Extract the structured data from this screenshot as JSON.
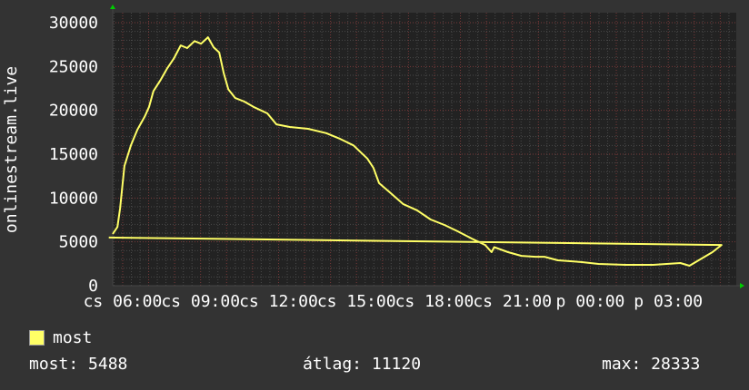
{
  "chart_data": {
    "type": "line",
    "ylabel": "onlinestream.live",
    "ylim": [
      0,
      31000
    ],
    "yticks": [
      "0",
      "5000",
      "10000",
      "15000",
      "20000",
      "25000",
      "30000"
    ],
    "xticks": [
      "cs 06:00",
      "cs 09:00",
      "cs 12:00",
      "cs 15:00",
      "cs 18:00",
      "cs 21:00",
      "p 00:00",
      "p 03:00"
    ],
    "grid": true,
    "legend_position": "bottom-left",
    "series": [
      {
        "name": "most",
        "color": "#ffff66",
        "points": [
          [
            "05:37",
            5900
          ],
          [
            "05:48",
            6700
          ],
          [
            "05:54",
            8800
          ],
          [
            "06:04",
            13650
          ],
          [
            "06:19",
            16000
          ],
          [
            "06:34",
            17800
          ],
          [
            "06:51",
            19300
          ],
          [
            "07:01",
            20400
          ],
          [
            "07:11",
            22200
          ],
          [
            "07:28",
            23500
          ],
          [
            "07:43",
            24800
          ],
          [
            "07:58",
            25900
          ],
          [
            "08:14",
            27400
          ],
          [
            "08:29",
            27100
          ],
          [
            "08:46",
            27900
          ],
          [
            "09:01",
            27600
          ],
          [
            "09:17",
            28333
          ],
          [
            "09:30",
            27200
          ],
          [
            "09:43",
            26600
          ],
          [
            "09:53",
            24300
          ],
          [
            "10:04",
            22400
          ],
          [
            "10:20",
            21400
          ],
          [
            "10:41",
            21000
          ],
          [
            "11:02",
            20400
          ],
          [
            "11:34",
            19650
          ],
          [
            "11:55",
            18400
          ],
          [
            "12:26",
            18100
          ],
          [
            "13:08",
            17900
          ],
          [
            "13:50",
            17400
          ],
          [
            "14:22",
            16750
          ],
          [
            "14:53",
            16000
          ],
          [
            "15:25",
            14500
          ],
          [
            "15:39",
            13450
          ],
          [
            "15:52",
            11700
          ],
          [
            "16:17",
            10650
          ],
          [
            "16:48",
            9300
          ],
          [
            "17:20",
            8600
          ],
          [
            "17:51",
            7550
          ],
          [
            "18:23",
            6930
          ],
          [
            "18:54",
            6200
          ],
          [
            "19:26",
            5380
          ],
          [
            "19:57",
            4650
          ],
          [
            "20:12",
            3830
          ],
          [
            "20:18",
            4400
          ],
          [
            "20:50",
            3830
          ],
          [
            "21:21",
            3400
          ],
          [
            "21:53",
            3300
          ],
          [
            "22:14",
            3300
          ],
          [
            "22:45",
            2900
          ],
          [
            "23:38",
            2700
          ],
          [
            "00:19",
            2480
          ],
          [
            "01:22",
            2380
          ],
          [
            "02:25",
            2380
          ],
          [
            "03:28",
            2590
          ],
          [
            "03:49",
            2280
          ],
          [
            "04:10",
            2900
          ],
          [
            "04:42",
            3830
          ],
          [
            "05:03",
            4650
          ],
          [
            "05:28",
            5488
          ]
        ]
      }
    ]
  },
  "legend": {
    "series_label": "most",
    "current": "most: 5488",
    "average": "átlag: 11120",
    "max": "max: 28333"
  }
}
